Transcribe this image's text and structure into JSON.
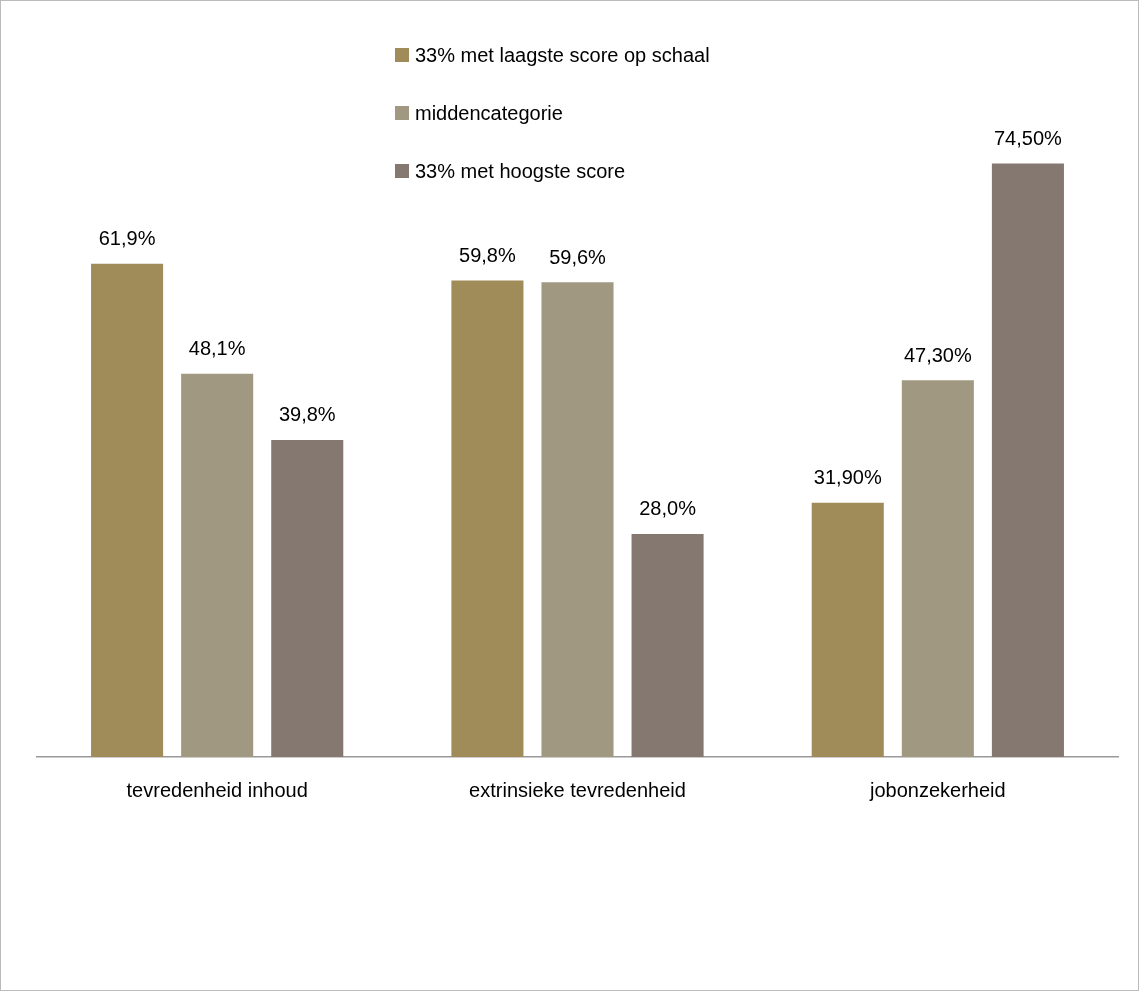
{
  "chart_data": {
    "type": "bar",
    "categories": [
      "tevredenheid inhoud",
      "extrinsieke tevredenheid",
      "jobonzekerheid"
    ],
    "series": [
      {
        "name": "33% met laagste score op schaal",
        "color": "#a08c58",
        "values": [
          61.9,
          59.8,
          31.9
        ],
        "value_labels": [
          "61,9%",
          "59,8%",
          "31,90%"
        ]
      },
      {
        "name": "middencategorie",
        "color": "#a09880",
        "values": [
          48.1,
          59.6,
          47.3
        ],
        "value_labels": [
          "48,1%",
          "59,6%",
          "47,30%"
        ]
      },
      {
        "name": "33% met hoogste score",
        "color": "#857870",
        "values": [
          39.8,
          28.0,
          74.5
        ],
        "value_labels": [
          "39,8%",
          "28,0%",
          "74,50%"
        ]
      }
    ],
    "legend": "top",
    "grid": false
  }
}
